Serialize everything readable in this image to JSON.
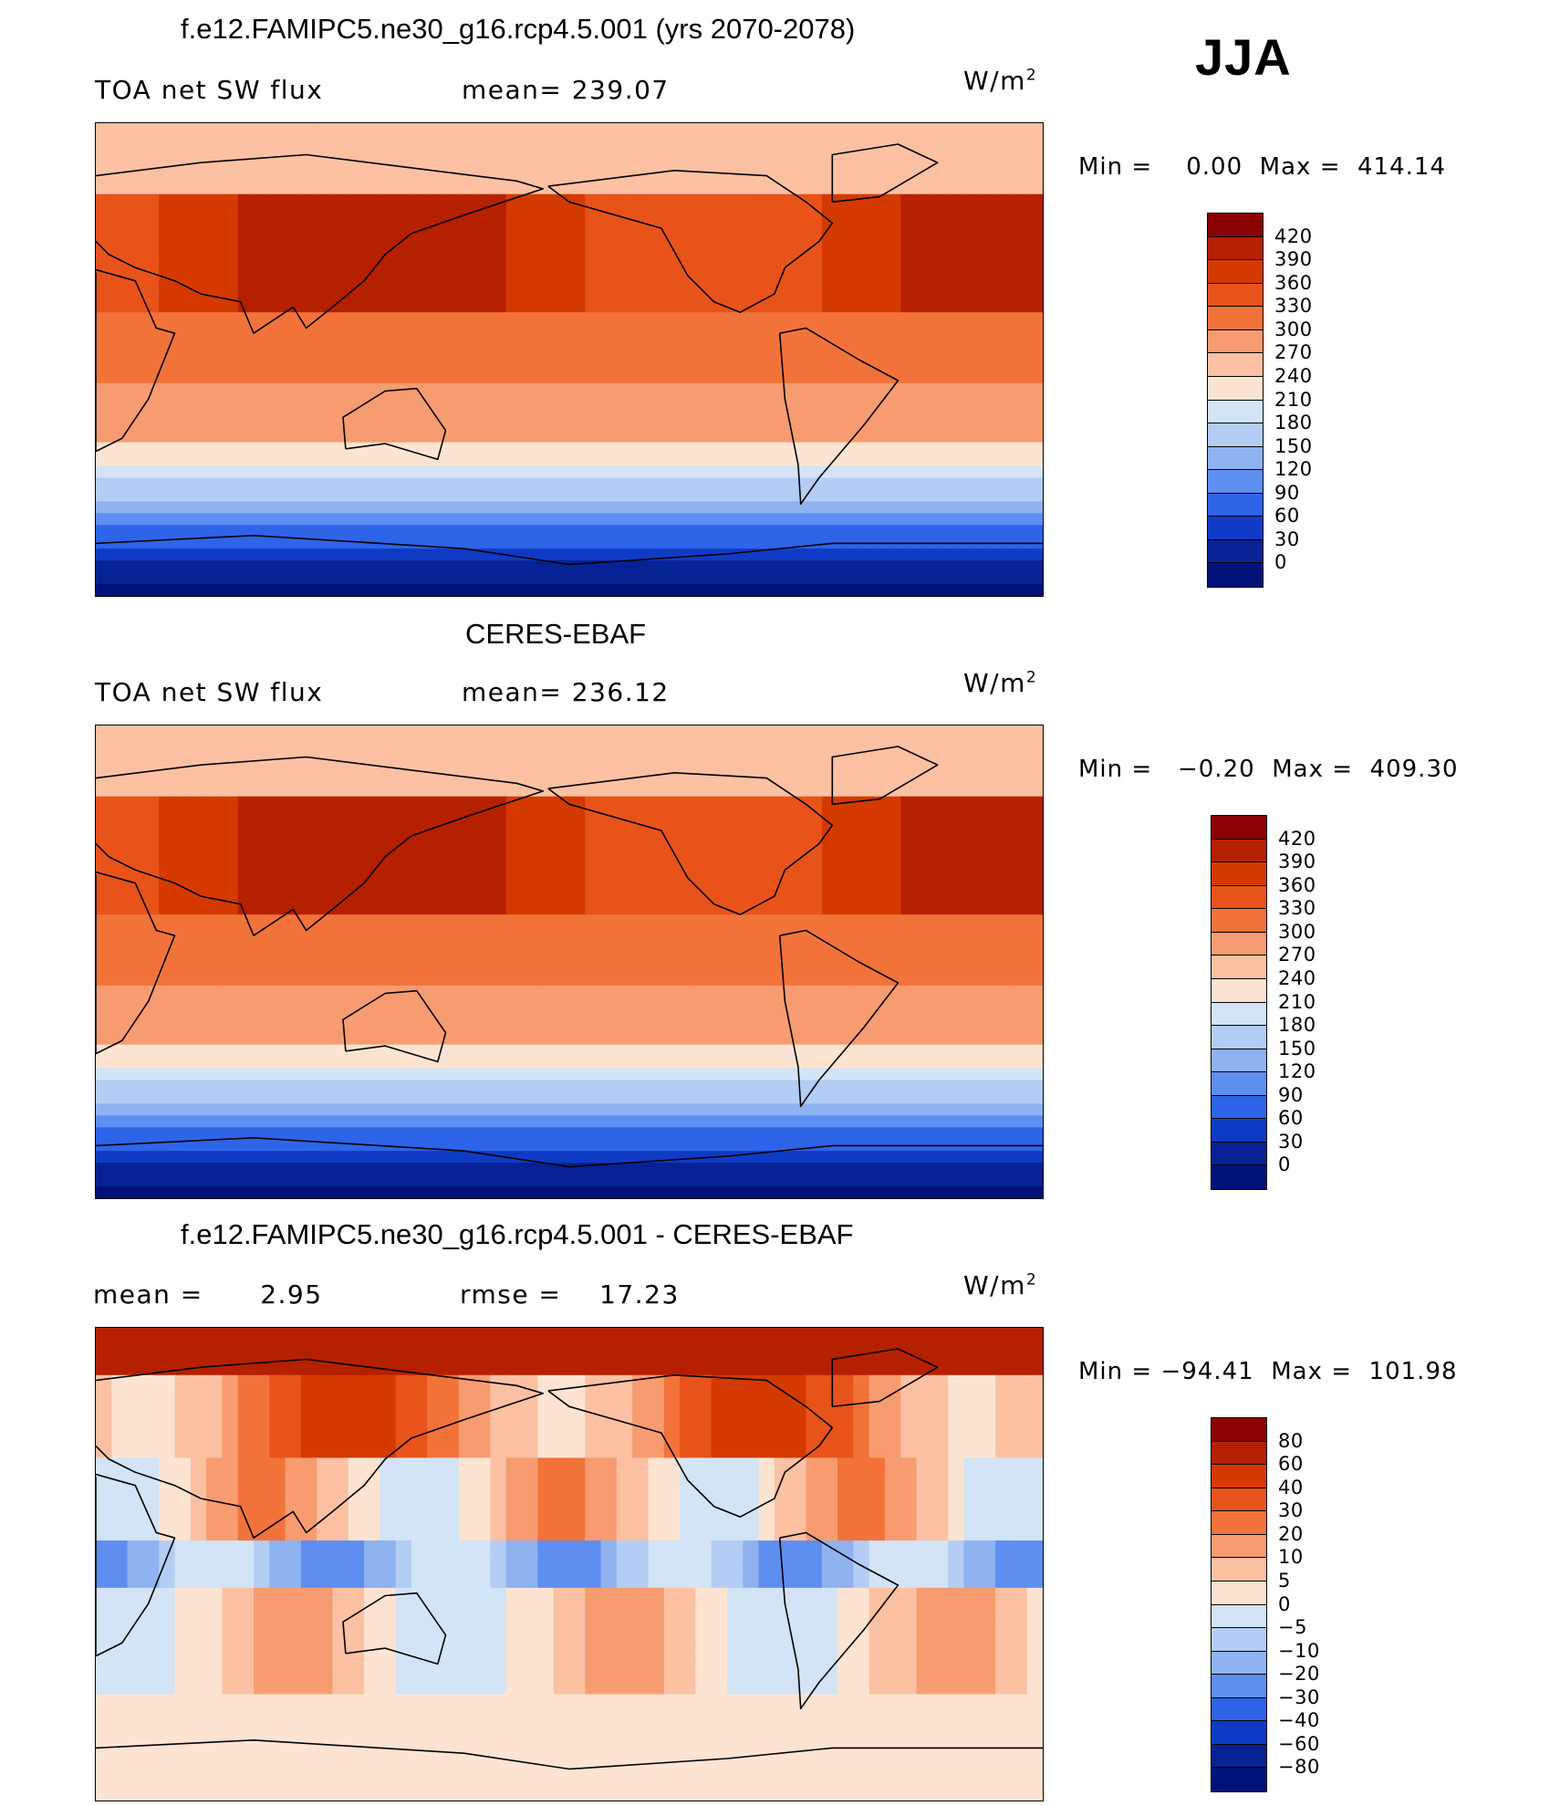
{
  "season": "JJA",
  "panels": [
    {
      "id": "model",
      "title": "f.e12.FAMIPC5.ne30_g16.rcp4.5.001 (yrs 2070-2078)",
      "left_label": "TOA net SW flux",
      "center_label": "mean= 239.07",
      "units": "W/m",
      "units_sup": "2",
      "min_text": "Min =",
      "min_value": "0.00",
      "max_text": "Max =",
      "max_value": "414.14",
      "colorbar": {
        "labels": [
          "420",
          "390",
          "360",
          "330",
          "300",
          "270",
          "240",
          "210",
          "180",
          "150",
          "120",
          "90",
          "60",
          "30",
          "0"
        ],
        "colors": [
          "#8b0000",
          "#b52000",
          "#d43a00",
          "#e8531a",
          "#f2733a",
          "#f79c70",
          "#fbc1a2",
          "#fde4d2",
          "#d2e4f6",
          "#b3cdf4",
          "#8fb2f0",
          "#5e8ef0",
          "#2d64e8",
          "#0f3bc4",
          "#062294",
          "#00117a"
        ]
      },
      "colormap_key": "div"
    },
    {
      "id": "obs",
      "title": "CERES-EBAF",
      "left_label": "TOA net SW flux",
      "center_label": "mean= 236.12",
      "units": "W/m",
      "units_sup": "2",
      "min_text": "Min =",
      "min_value": "−0.20",
      "max_text": "Max =",
      "max_value": "409.30",
      "colorbar": {
        "labels": [
          "420",
          "390",
          "360",
          "330",
          "300",
          "270",
          "240",
          "210",
          "180",
          "150",
          "120",
          "90",
          "60",
          "30",
          "0"
        ],
        "colors": [
          "#8b0000",
          "#b52000",
          "#d43a00",
          "#e8531a",
          "#f2733a",
          "#f79c70",
          "#fbc1a2",
          "#fde4d2",
          "#d2e4f6",
          "#b3cdf4",
          "#8fb2f0",
          "#5e8ef0",
          "#2d64e8",
          "#0f3bc4",
          "#062294",
          "#00117a"
        ]
      },
      "colormap_key": "div"
    },
    {
      "id": "diff",
      "title": "f.e12.FAMIPC5.ne30_g16.rcp4.5.001 - CERES-EBAF",
      "left_label": "mean =",
      "left_value": "2.95",
      "center_label": "rmse =",
      "center_value": "17.23",
      "units": "W/m",
      "units_sup": "2",
      "min_text": "Min =",
      "min_value": "−94.41",
      "max_text": "Max =",
      "max_value": "101.98",
      "colorbar": {
        "labels": [
          "80",
          "60",
          "40",
          "30",
          "20",
          "10",
          "5",
          "0",
          "−5",
          "−10",
          "−20",
          "−30",
          "−40",
          "−60",
          "−80"
        ],
        "colors": [
          "#8b0000",
          "#b52000",
          "#d43a00",
          "#e8531a",
          "#f2733a",
          "#f79c70",
          "#fbc1a2",
          "#fde4d2",
          "#d2e4f6",
          "#b3cdf4",
          "#8fb2f0",
          "#5e8ef0",
          "#2d64e8",
          "#0f3bc4",
          "#062294",
          "#00117a"
        ]
      },
      "colormap_key": "div"
    }
  ]
}
